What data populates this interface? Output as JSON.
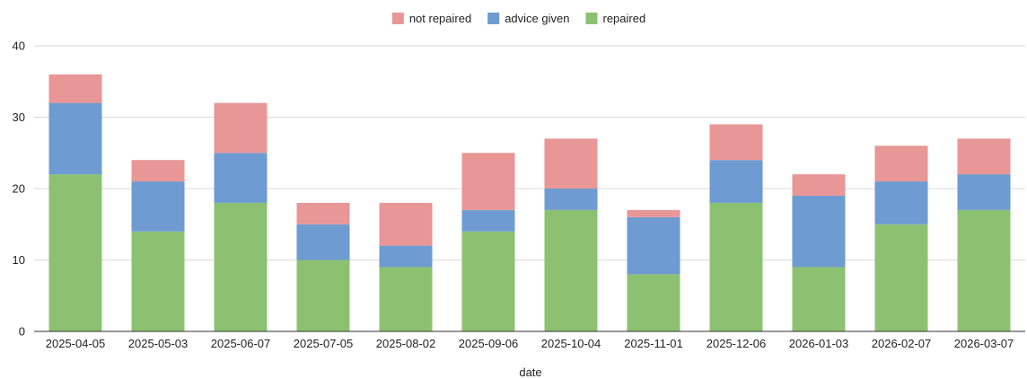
{
  "chart_data": {
    "type": "bar",
    "stacked": true,
    "xlabel": "date",
    "ylabel": "",
    "ylim": [
      0,
      40
    ],
    "yticks": [
      0,
      10,
      20,
      30,
      40
    ],
    "grid": true,
    "legend_position": "top-center",
    "categories": [
      "2025-04-05",
      "2025-05-03",
      "2025-06-07",
      "2025-07-05",
      "2025-08-02",
      "2025-09-06",
      "2025-10-04",
      "2025-11-01",
      "2025-12-06",
      "2026-01-03",
      "2026-02-07",
      "2026-03-07"
    ],
    "series": [
      {
        "name": "repaired",
        "color": "#8dc172",
        "values": [
          22,
          14,
          18,
          10,
          9,
          14,
          17,
          8,
          18,
          9,
          15,
          17
        ]
      },
      {
        "name": "advice given",
        "color": "#6e9bd1",
        "values": [
          10,
          7,
          7,
          5,
          3,
          3,
          3,
          8,
          6,
          10,
          6,
          5
        ]
      },
      {
        "name": "not repaired",
        "color": "#e89696",
        "values": [
          4,
          3,
          7,
          3,
          6,
          8,
          7,
          1,
          5,
          3,
          5,
          5
        ]
      }
    ],
    "legend_order": [
      "not repaired",
      "advice given",
      "repaired"
    ]
  }
}
